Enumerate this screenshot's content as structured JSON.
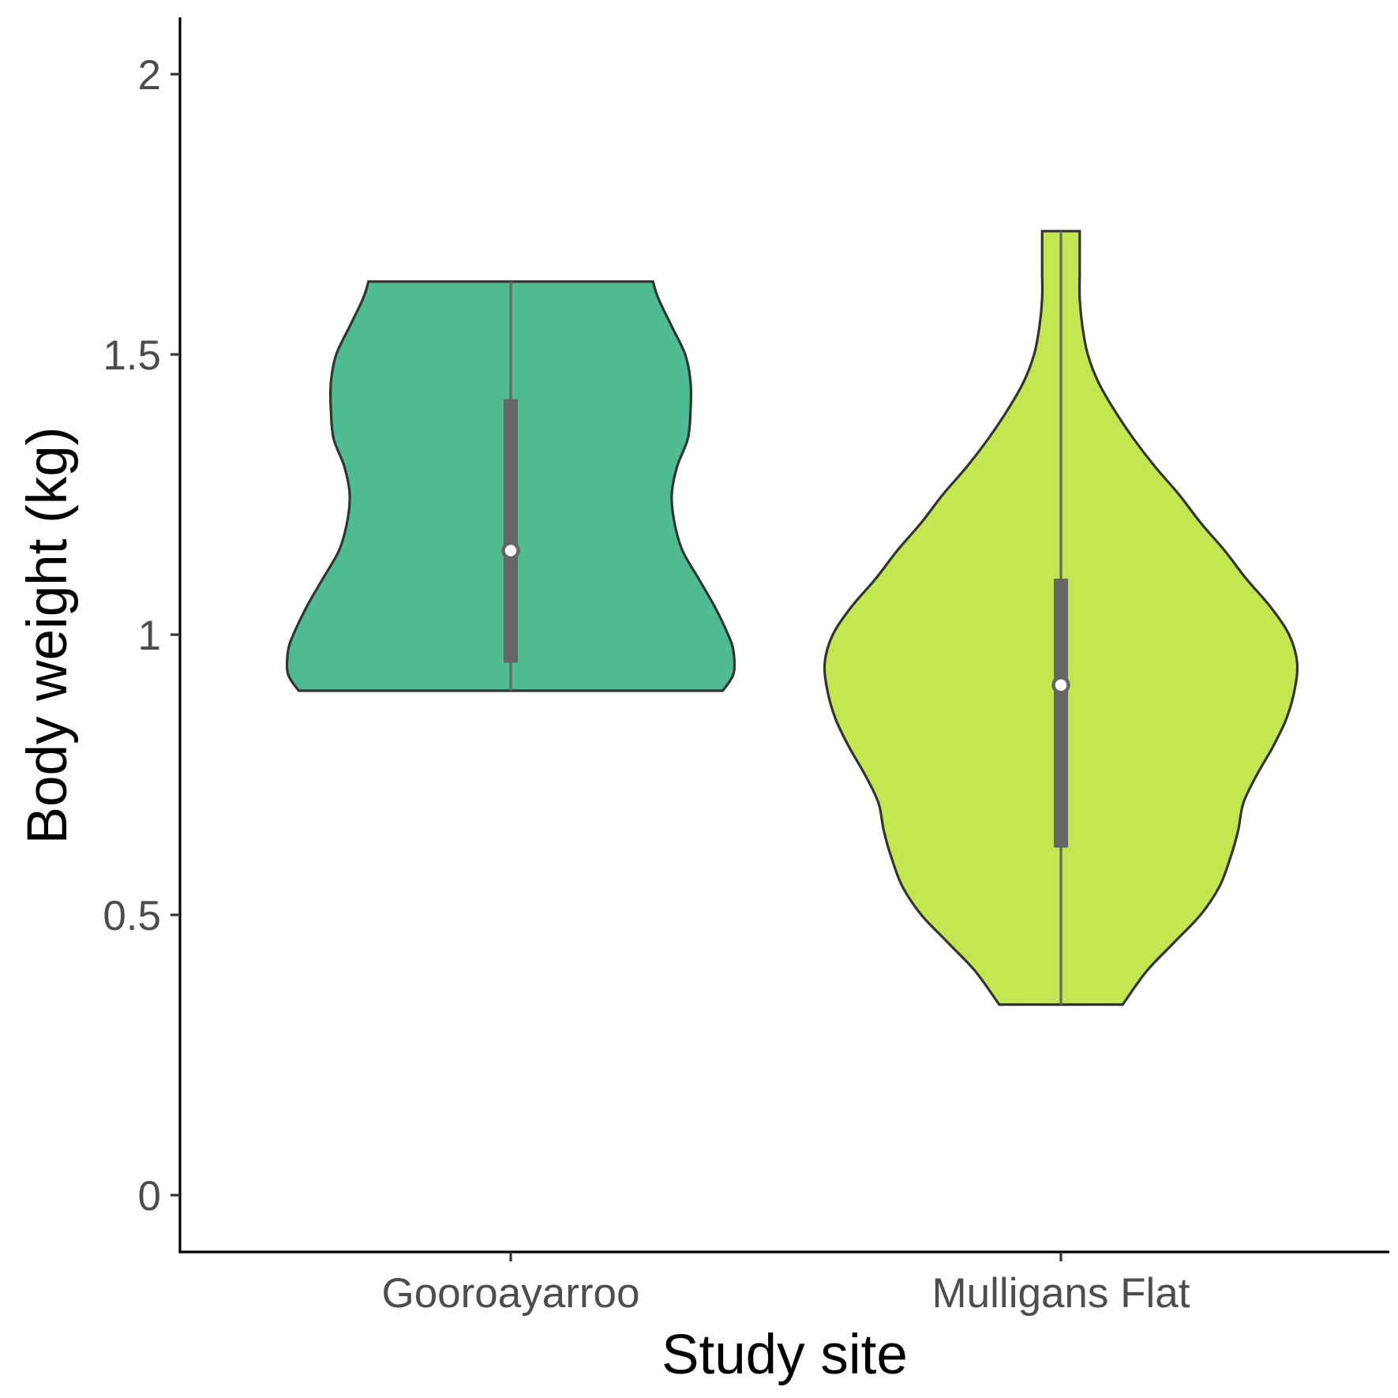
{
  "chart_data": {
    "type": "violin",
    "xlabel": "Study site",
    "ylabel": "Body weight (kg)",
    "categories": [
      "Gooroayarroo",
      "Mulligans Flat"
    ],
    "ylim": [
      -0.1,
      2.1
    ],
    "yticks": [
      0,
      0.5,
      1,
      1.5,
      2
    ],
    "ytick_labels": [
      "0",
      "0.5",
      "1",
      "1.5",
      "2"
    ],
    "grid": false,
    "legend": "none",
    "violins": [
      {
        "category": "Gooroayarroo",
        "color": "#4fbb93",
        "min": 0.9,
        "max": 1.63,
        "q1": 0.95,
        "median": 1.15,
        "q3": 1.42,
        "density": [
          [
            0.9,
            0.79
          ],
          [
            0.93,
            0.83
          ],
          [
            0.97,
            0.83
          ],
          [
            1.0,
            0.81
          ],
          [
            1.05,
            0.76
          ],
          [
            1.1,
            0.7
          ],
          [
            1.15,
            0.64
          ],
          [
            1.2,
            0.61
          ],
          [
            1.25,
            0.6
          ],
          [
            1.3,
            0.62
          ],
          [
            1.35,
            0.66
          ],
          [
            1.4,
            0.67
          ],
          [
            1.45,
            0.67
          ],
          [
            1.5,
            0.65
          ],
          [
            1.55,
            0.6
          ],
          [
            1.6,
            0.55
          ],
          [
            1.63,
            0.53
          ]
        ]
      },
      {
        "category": "Mulligans Flat",
        "color": "#c4e650",
        "min": 0.34,
        "max": 1.72,
        "q1": 0.62,
        "median": 0.91,
        "q3": 1.1,
        "density": [
          [
            0.34,
            0.23
          ],
          [
            0.4,
            0.32
          ],
          [
            0.45,
            0.42
          ],
          [
            0.5,
            0.52
          ],
          [
            0.55,
            0.59
          ],
          [
            0.6,
            0.63
          ],
          [
            0.65,
            0.66
          ],
          [
            0.7,
            0.68
          ],
          [
            0.75,
            0.73
          ],
          [
            0.8,
            0.79
          ],
          [
            0.85,
            0.84
          ],
          [
            0.9,
            0.87
          ],
          [
            0.95,
            0.88
          ],
          [
            1.0,
            0.85
          ],
          [
            1.05,
            0.78
          ],
          [
            1.1,
            0.69
          ],
          [
            1.15,
            0.61
          ],
          [
            1.2,
            0.52
          ],
          [
            1.25,
            0.44
          ],
          [
            1.3,
            0.35
          ],
          [
            1.35,
            0.27
          ],
          [
            1.4,
            0.2
          ],
          [
            1.45,
            0.14
          ],
          [
            1.5,
            0.1
          ],
          [
            1.55,
            0.08
          ],
          [
            1.6,
            0.07
          ],
          [
            1.65,
            0.07
          ],
          [
            1.72,
            0.07
          ]
        ]
      }
    ]
  }
}
